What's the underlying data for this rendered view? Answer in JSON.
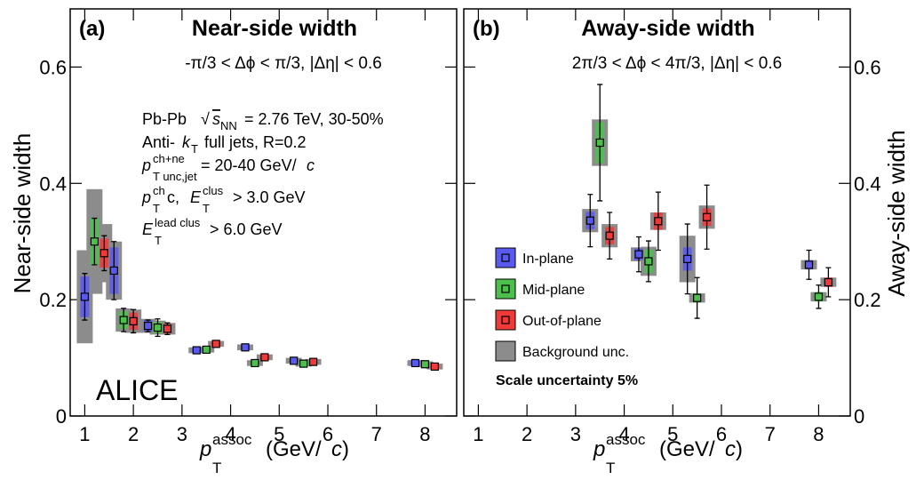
{
  "chart_data": [
    {
      "type": "scatter",
      "panel_label": "(a)",
      "title": "Near-side width",
      "subtitle": "-π/3 < Δϕ < π/3, |Δη| < 0.6",
      "ylabel": "Near-side width",
      "yaxis_side": "left",
      "xlabel": [
        "p",
        "assoc",
        "T",
        "(GeV/",
        "c",
        ")"
      ],
      "xlim": [
        0.7,
        8.65
      ],
      "ylim": [
        0,
        0.7
      ],
      "xticks": [
        1,
        2,
        3,
        4,
        5,
        6,
        7,
        8
      ],
      "yticks": [
        0,
        0.2,
        0.4,
        0.6
      ],
      "bkg_color": "#8c8c8c",
      "annotations": [
        [
          "Pb-Pb",
          "√",
          "s",
          "NN",
          "= 2.76 TeV, 30-50%"
        ],
        [
          "Anti-",
          "k",
          "T",
          "full jets, R=0.2"
        ],
        [
          "p",
          "ch+ne",
          "T unc,jet",
          "= 20-40 GeV/",
          "c"
        ],
        [
          "p",
          "ch",
          "T",
          "c,",
          "E",
          "clus",
          "T",
          "> 3.0 GeV"
        ],
        [
          "E",
          "lead clus",
          "T",
          "> 6.0 GeV"
        ]
      ],
      "experiment": "ALICE",
      "series": [
        {
          "name": "In-plane",
          "color": "#5a5af0",
          "x": [
            1.0,
            1.6,
            2.3,
            3.3,
            4.3,
            5.3,
            7.8
          ],
          "values": [
            0.205,
            0.25,
            0.155,
            0.113,
            0.118,
            0.095,
            0.091
          ],
          "errors": [
            0.04,
            0.05,
            0.01,
            0.005,
            0.005,
            0.005,
            0.005
          ],
          "sys": [
            0.035,
            0.04,
            0.01,
            0.004,
            0.004,
            0.004,
            0.004
          ],
          "bkg": [
            0.08,
            0.05,
            0.012,
            0.005,
            0.005,
            0.005,
            0.005
          ]
        },
        {
          "name": "Mid-plane",
          "color": "#4cbf4c",
          "x": [
            1.2,
            1.8,
            2.5,
            3.5,
            4.5,
            5.5,
            8.0
          ],
          "values": [
            0.3,
            0.165,
            0.152,
            0.114,
            0.091,
            0.09,
            0.089
          ],
          "errors": [
            0.04,
            0.02,
            0.015,
            0.005,
            0.005,
            0.005,
            0.005
          ],
          "sys": [
            0.04,
            0.015,
            0.01,
            0.004,
            0.004,
            0.004,
            0.004
          ],
          "bkg": [
            0.09,
            0.02,
            0.012,
            0.005,
            0.005,
            0.005,
            0.005
          ]
        },
        {
          "name": "Out-of-plane",
          "color": "#f03a3a",
          "x": [
            1.4,
            2.0,
            2.7,
            3.7,
            4.7,
            5.7,
            8.2
          ],
          "values": [
            0.28,
            0.163,
            0.15,
            0.124,
            0.101,
            0.093,
            0.085
          ],
          "errors": [
            0.03,
            0.02,
            0.01,
            0.005,
            0.005,
            0.005,
            0.005
          ],
          "sys": [
            0.025,
            0.015,
            0.008,
            0.004,
            0.004,
            0.004,
            0.004
          ],
          "bkg": [
            0.05,
            0.02,
            0.01,
            0.005,
            0.005,
            0.005,
            0.005
          ]
        }
      ]
    },
    {
      "type": "scatter",
      "panel_label": "(b)",
      "title": "Away-side width",
      "subtitle": "2π/3 < Δϕ < 4π/3, |Δη| < 0.6",
      "ylabel": "Away-side width",
      "yaxis_side": "right",
      "xlabel": [
        "p",
        "assoc",
        "T",
        "(GeV/",
        "c",
        ")"
      ],
      "xlim": [
        0.7,
        8.65
      ],
      "ylim": [
        0,
        0.7
      ],
      "xticks": [
        1,
        2,
        3,
        4,
        5,
        6,
        7,
        8
      ],
      "yticks": [
        0,
        0.2,
        0.4,
        0.6
      ],
      "bkg_color": "#8c8c8c",
      "legend": "lower left",
      "bkg_label": "Background unc.",
      "scale_note": "Scale uncertainty 5%",
      "series": [
        {
          "name": "In-plane",
          "color": "#5a5af0",
          "x": [
            3.3,
            4.3,
            5.3,
            7.8
          ],
          "values": [
            0.336,
            0.278,
            0.27,
            0.26
          ],
          "errors": [
            0.045,
            0.03,
            0.06,
            0.025
          ],
          "sys": [
            0.015,
            0.01,
            0.02,
            0.008
          ],
          "bkg": [
            0.02,
            0.012,
            0.04,
            0.008
          ]
        },
        {
          "name": "Mid-plane",
          "color": "#4cbf4c",
          "x": [
            3.5,
            4.5,
            5.5,
            8.0
          ],
          "values": [
            0.47,
            0.266,
            0.203,
            0.205
          ],
          "errors": [
            0.1,
            0.035,
            0.035,
            0.02
          ],
          "sys": [
            0.035,
            0.02,
            0.008,
            0.008
          ],
          "bkg": [
            0.04,
            0.025,
            0.008,
            0.008
          ]
        },
        {
          "name": "Out-of-plane",
          "color": "#f03a3a",
          "x": [
            3.7,
            4.7,
            5.7,
            8.2
          ],
          "values": [
            0.31,
            0.335,
            0.342,
            0.23
          ],
          "errors": [
            0.04,
            0.05,
            0.055,
            0.025
          ],
          "sys": [
            0.015,
            0.015,
            0.015,
            0.008
          ],
          "bkg": [
            0.02,
            0.015,
            0.02,
            0.008
          ]
        }
      ]
    }
  ]
}
